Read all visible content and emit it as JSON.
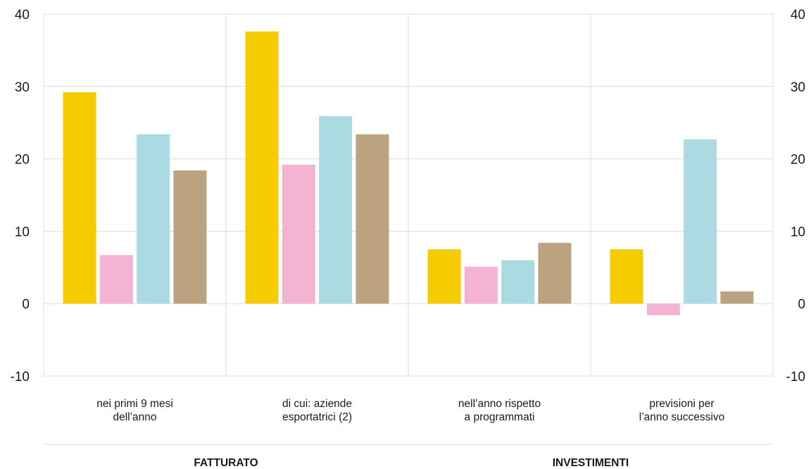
{
  "chart_data": {
    "type": "bar",
    "categories": [
      [
        "nei primi 9 mesi",
        "dell’anno"
      ],
      [
        "di cui: aziende",
        "esportatrici (2)"
      ],
      [
        "nell’anno rispetto",
        "a programmati"
      ],
      [
        "previsioni per",
        "l’anno successivo"
      ]
    ],
    "groups": [
      {
        "label": "FATTURATO",
        "span": [
          0,
          1
        ]
      },
      {
        "label": "INVESTIMENTI",
        "span": [
          2,
          3
        ]
      }
    ],
    "series": [
      {
        "color": "#f5cc00",
        "values": [
          29.2,
          37.6,
          7.5,
          7.5
        ]
      },
      {
        "color": "#f4b3d3",
        "values": [
          6.7,
          19.2,
          5.1,
          -1.6
        ]
      },
      {
        "color": "#acdae3",
        "values": [
          23.4,
          25.9,
          6.0,
          22.7
        ]
      },
      {
        "color": "#bca37f",
        "values": [
          18.4,
          23.4,
          8.4,
          1.7
        ]
      }
    ],
    "ylim": [
      -10,
      40
    ],
    "yticks": [
      "-10",
      "0",
      "10",
      "20",
      "30",
      "40"
    ],
    "ytick_values": [
      -10,
      0,
      10,
      20,
      30,
      40
    ],
    "y_axis_both_sides": true,
    "grid": true,
    "legend": "none"
  }
}
